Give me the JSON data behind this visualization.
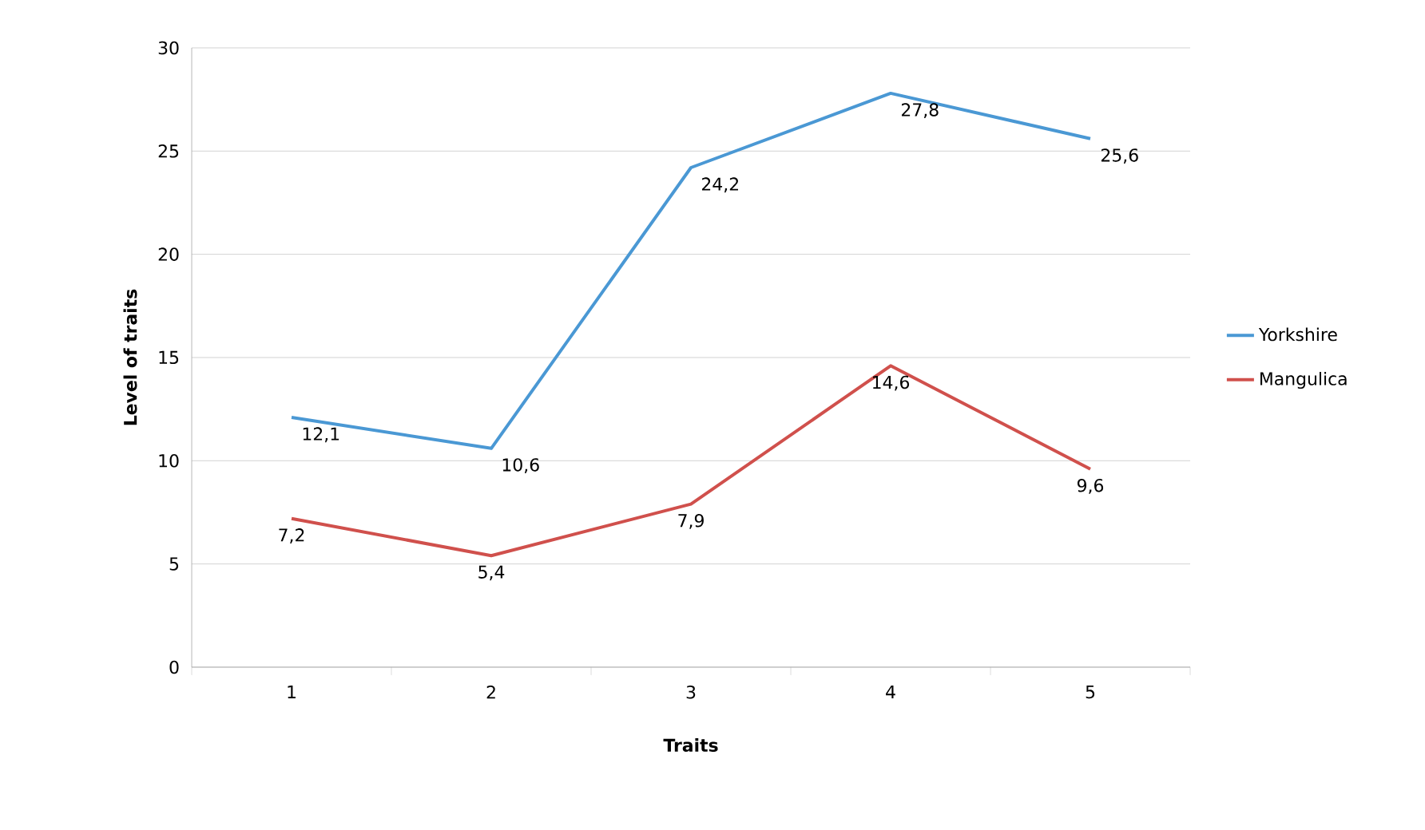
{
  "chart_data": {
    "type": "line",
    "xlabel": "Traits",
    "ylabel": "Level of traits",
    "categories": [
      "1",
      "2",
      "3",
      "4",
      "5"
    ],
    "series": [
      {
        "name": "Yorkshire",
        "color": "#4a98d4",
        "values": [
          12.1,
          10.6,
          24.2,
          27.8,
          25.6
        ],
        "value_labels": [
          "12,1",
          "10,6",
          "24,2",
          "27,8",
          "25,6"
        ]
      },
      {
        "name": "Mangulica",
        "color": "#d0504c",
        "values": [
          7.2,
          5.4,
          7.9,
          14.6,
          9.6
        ],
        "value_labels": [
          "7,2",
          "5,4",
          "7,9",
          "14,6",
          "9,6"
        ]
      }
    ],
    "ylim": [
      0,
      30
    ],
    "yticks": [
      0,
      5,
      10,
      15,
      20,
      25,
      30
    ],
    "grid": "y",
    "legend": "right",
    "marker": "none",
    "line_style": "solid"
  }
}
